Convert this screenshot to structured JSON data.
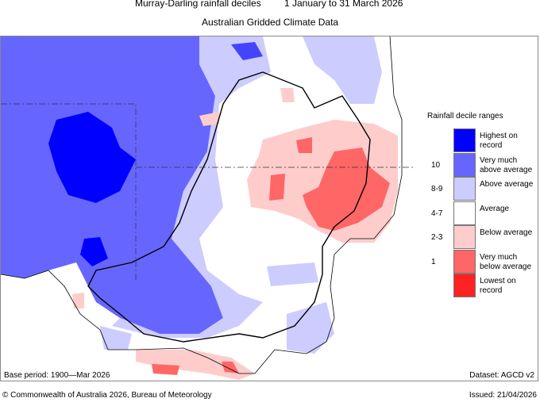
{
  "header": {
    "title": "Murray-Darling rainfall deciles",
    "period": "1 January to 31 March 2026",
    "subtitle": "Australian Gridded Climate Data"
  },
  "legend": {
    "title": "Rainfall decile ranges",
    "items": [
      {
        "range": "",
        "label": "Highest on record",
        "color": "#0000ff"
      },
      {
        "range": "10",
        "label": "Very much above average",
        "color": "#6666ff"
      },
      {
        "range": "8-9",
        "label": "Above average",
        "color": "#ccccff"
      },
      {
        "range": "4-7",
        "label": "Average",
        "color": "#ffffff"
      },
      {
        "range": "2-3",
        "label": "Below average",
        "color": "#ffcccc"
      },
      {
        "range": "1",
        "label": "Very much below average",
        "color": "#ff6666"
      },
      {
        "range": "",
        "label": "Lowest on record",
        "color": "#ff2222"
      }
    ]
  },
  "footer": {
    "base_period": "Base period: 1900—Mar 2026",
    "dataset": "Dataset: AGCD v2",
    "copyright": "© Commonwealth of Australia 2026, Bureau of Meteorology",
    "issued": "Issued: 21/04/2026"
  }
}
